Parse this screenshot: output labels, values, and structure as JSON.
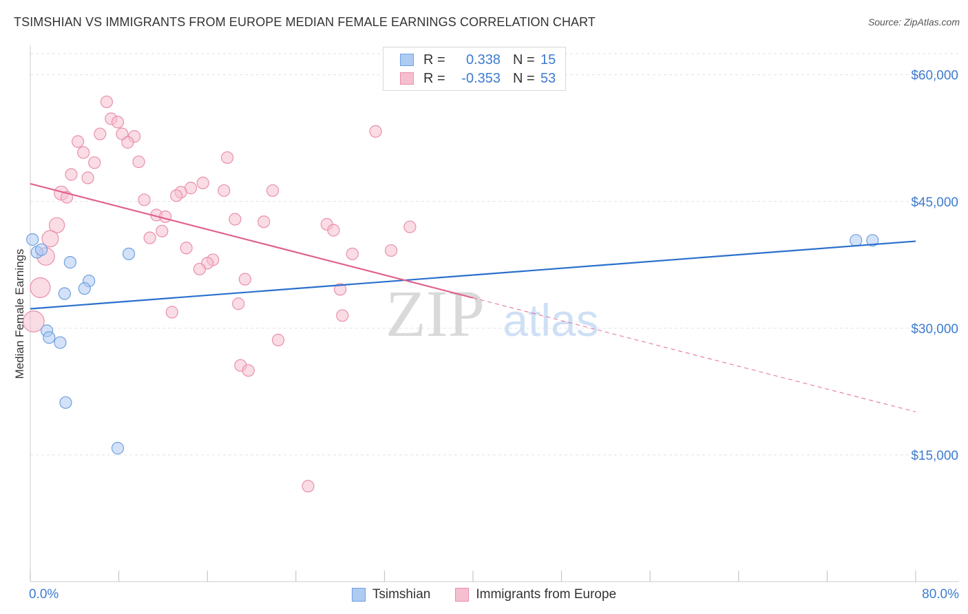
{
  "title": "TSIMSHIAN VS IMMIGRANTS FROM EUROPE MEDIAN FEMALE EARNINGS CORRELATION CHART",
  "source": "Source: ZipAtlas.com",
  "watermark": {
    "zip": "ZIP",
    "atlas": "atlas"
  },
  "legend": {
    "rows": [
      {
        "r_label": "R =",
        "r_value": "0.338",
        "n_label": "N =",
        "n_value": "15"
      },
      {
        "r_label": "R =",
        "r_value": "-0.353",
        "n_label": "N =",
        "n_value": "53"
      }
    ]
  },
  "bottom_legend": {
    "series1": "Tsimshian",
    "series2": "Immigrants from Europe"
  },
  "colors": {
    "blue_fill": "#aecbf2",
    "blue_stroke": "#6f9fe0",
    "blue_line": "#2a6fcc",
    "pink_fill": "#f6bfd0",
    "pink_stroke": "#e98fab",
    "pink_line": "#e0628e",
    "axis_label": "#3d7bd0",
    "grid": "#e2e2e2"
  },
  "chart_data": {
    "type": "scatter",
    "title": "TSIMSHIAN VS IMMIGRANTS FROM EUROPE MEDIAN FEMALE EARNINGS CORRELATION CHART",
    "xlabel": "",
    "ylabel": "Median Female Earnings",
    "xlim": [
      0,
      80
    ],
    "ylim": [
      0,
      62500
    ],
    "x_tick_labels": [
      "0.0%",
      "80.0%"
    ],
    "y_ticks": [
      15000,
      30000,
      45000,
      60000
    ],
    "y_tick_labels": [
      "$15,000",
      "$30,000",
      "$45,000",
      "$60,000"
    ],
    "series": [
      {
        "name": "Tsimshian",
        "color": "blue",
        "points": [
          {
            "x": 0.2,
            "y": 40500,
            "s": 1
          },
          {
            "x": 0.6,
            "y": 39000,
            "s": 1
          },
          {
            "x": 1.0,
            "y": 39300,
            "s": 1
          },
          {
            "x": 3.6,
            "y": 37800,
            "s": 1
          },
          {
            "x": 8.9,
            "y": 38800,
            "s": 1
          },
          {
            "x": 5.3,
            "y": 35600,
            "s": 1
          },
          {
            "x": 4.9,
            "y": 34700,
            "s": 1
          },
          {
            "x": 3.1,
            "y": 34100,
            "s": 1
          },
          {
            "x": 1.5,
            "y": 29700,
            "s": 1
          },
          {
            "x": 1.7,
            "y": 28900,
            "s": 1
          },
          {
            "x": 2.7,
            "y": 28300,
            "s": 1
          },
          {
            "x": 3.2,
            "y": 21200,
            "s": 1
          },
          {
            "x": 7.9,
            "y": 15800,
            "s": 1
          },
          {
            "x": 74.6,
            "y": 40400,
            "s": 1
          },
          {
            "x": 76.1,
            "y": 40400,
            "s": 1
          }
        ],
        "trend": {
          "x0": 0,
          "y0": 32300,
          "x1": 80,
          "y1": 40300,
          "dashed_from": null
        }
      },
      {
        "name": "Immigrants from Europe",
        "color": "pink",
        "points": [
          {
            "x": 6.9,
            "y": 56800,
            "s": 1
          },
          {
            "x": 7.3,
            "y": 54800,
            "s": 1
          },
          {
            "x": 7.9,
            "y": 54400,
            "s": 1
          },
          {
            "x": 6.3,
            "y": 53000,
            "s": 1
          },
          {
            "x": 8.3,
            "y": 53000,
            "s": 1
          },
          {
            "x": 9.4,
            "y": 52700,
            "s": 1
          },
          {
            "x": 4.3,
            "y": 52100,
            "s": 1
          },
          {
            "x": 8.8,
            "y": 52000,
            "s": 1
          },
          {
            "x": 4.8,
            "y": 50800,
            "s": 1
          },
          {
            "x": 5.8,
            "y": 49600,
            "s": 1
          },
          {
            "x": 9.8,
            "y": 49700,
            "s": 1
          },
          {
            "x": 17.8,
            "y": 50200,
            "s": 1
          },
          {
            "x": 3.7,
            "y": 48200,
            "s": 1
          },
          {
            "x": 5.2,
            "y": 47800,
            "s": 1
          },
          {
            "x": 15.6,
            "y": 47200,
            "s": 1
          },
          {
            "x": 14.5,
            "y": 46600,
            "s": 1
          },
          {
            "x": 17.5,
            "y": 46300,
            "s": 1
          },
          {
            "x": 21.9,
            "y": 46300,
            "s": 1
          },
          {
            "x": 13.6,
            "y": 46100,
            "s": 1
          },
          {
            "x": 13.2,
            "y": 45700,
            "s": 1
          },
          {
            "x": 2.8,
            "y": 46000,
            "s": 1.2
          },
          {
            "x": 3.3,
            "y": 45500,
            "s": 1
          },
          {
            "x": 10.3,
            "y": 45200,
            "s": 1
          },
          {
            "x": 11.4,
            "y": 43400,
            "s": 1
          },
          {
            "x": 12.2,
            "y": 43200,
            "s": 1
          },
          {
            "x": 18.5,
            "y": 42900,
            "s": 1
          },
          {
            "x": 21.1,
            "y": 42600,
            "s": 1
          },
          {
            "x": 2.4,
            "y": 42200,
            "s": 1.3
          },
          {
            "x": 26.8,
            "y": 42300,
            "s": 1
          },
          {
            "x": 34.3,
            "y": 42000,
            "s": 1
          },
          {
            "x": 27.4,
            "y": 41600,
            "s": 1
          },
          {
            "x": 11.9,
            "y": 41500,
            "s": 1
          },
          {
            "x": 10.8,
            "y": 40700,
            "s": 1
          },
          {
            "x": 1.8,
            "y": 40600,
            "s": 1.4
          },
          {
            "x": 14.1,
            "y": 39500,
            "s": 1
          },
          {
            "x": 32.6,
            "y": 39200,
            "s": 1
          },
          {
            "x": 29.1,
            "y": 38800,
            "s": 1
          },
          {
            "x": 1.4,
            "y": 38500,
            "s": 1.5
          },
          {
            "x": 16.5,
            "y": 38100,
            "s": 1
          },
          {
            "x": 16.0,
            "y": 37700,
            "s": 1
          },
          {
            "x": 15.3,
            "y": 37000,
            "s": 1
          },
          {
            "x": 19.4,
            "y": 35800,
            "s": 1
          },
          {
            "x": 0.9,
            "y": 34800,
            "s": 1.7
          },
          {
            "x": 28.0,
            "y": 34600,
            "s": 1
          },
          {
            "x": 18.8,
            "y": 32900,
            "s": 1
          },
          {
            "x": 12.8,
            "y": 31900,
            "s": 1
          },
          {
            "x": 0.3,
            "y": 30800,
            "s": 1.8
          },
          {
            "x": 28.2,
            "y": 31500,
            "s": 1
          },
          {
            "x": 22.4,
            "y": 28600,
            "s": 1
          },
          {
            "x": 19.0,
            "y": 25600,
            "s": 1
          },
          {
            "x": 19.7,
            "y": 25000,
            "s": 1
          },
          {
            "x": 31.2,
            "y": 53300,
            "s": 1
          },
          {
            "x": 25.1,
            "y": 11300,
            "s": 1
          }
        ],
        "trend": {
          "x0": 0,
          "y0": 47100,
          "x1": 80,
          "y1": 20100,
          "dashed_from": 40
        }
      }
    ]
  }
}
